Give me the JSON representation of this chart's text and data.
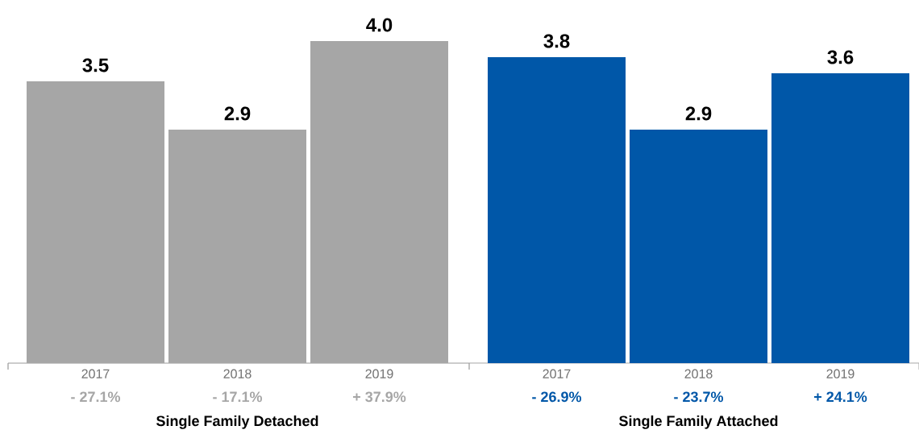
{
  "chart_data": [
    {
      "type": "bar",
      "xlabel": "Single Family Detached",
      "categories": [
        "2017",
        "2018",
        "2019"
      ],
      "values": [
        3.5,
        2.9,
        4.0
      ],
      "color": "#a6a6a6",
      "value_labels": [
        "3.5",
        "2.9",
        "4.0"
      ],
      "annotations": [
        "- 27.1%",
        "- 17.1%",
        "+ 37.9%"
      ]
    },
    {
      "type": "bar",
      "xlabel": "Single Family Attached",
      "categories": [
        "2017",
        "2018",
        "2019"
      ],
      "values": [
        3.8,
        2.9,
        3.6
      ],
      "color": "#0057a8",
      "value_labels": [
        "3.8",
        "2.9",
        "3.6"
      ],
      "annotations": [
        "- 26.9%",
        "- 23.7%",
        "+ 24.1%"
      ]
    }
  ]
}
